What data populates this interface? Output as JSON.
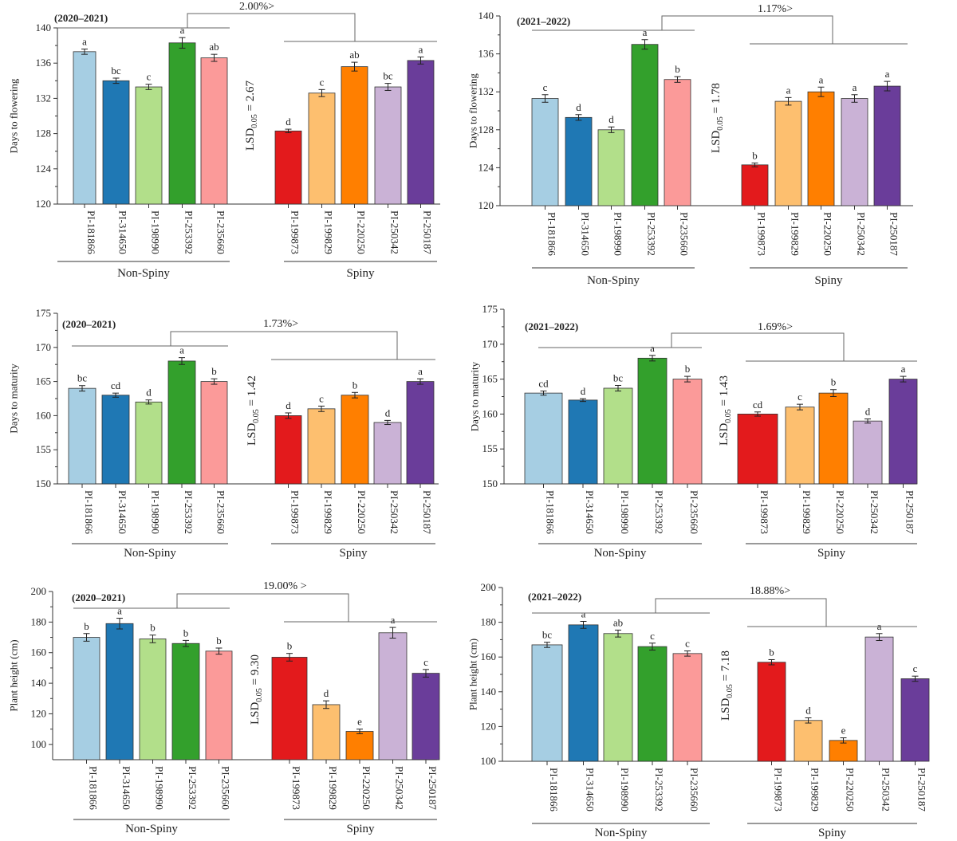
{
  "chart_data": [
    {
      "type": "bar",
      "period": "(2020–2021)",
      "ylabel": "Days to flowering",
      "ylim": [
        120,
        140
      ],
      "yticks": [
        120,
        124,
        128,
        132,
        136,
        140
      ],
      "categories": [
        "PI-181866",
        "PI-314650",
        "PI-198990",
        "PI-253392",
        "PI-235660",
        "PI-199873",
        "PI-199829",
        "PI-220250",
        "PI-250342",
        "PI-250187"
      ],
      "values": [
        137.3,
        134.0,
        133.3,
        138.3,
        136.6,
        128.3,
        132.6,
        135.6,
        133.3,
        136.3
      ],
      "errors": [
        0.3,
        0.3,
        0.3,
        0.6,
        0.4,
        0.2,
        0.4,
        0.5,
        0.4,
        0.4
      ],
      "letters": [
        "a",
        "bc",
        "c",
        "a",
        "ab",
        "d",
        "c",
        "ab",
        "bc",
        "a"
      ],
      "groups": [
        "Non-Spiny",
        "Spiny"
      ],
      "lsd": "LSD0.05 = 2.67",
      "lsd_main": "LSD",
      "lsd_sub": "0.05",
      "lsd_val": " = 2.67",
      "difference": "2.00%>"
    },
    {
      "type": "bar",
      "period": "(2021–2022)",
      "ylabel": "Days to flowering",
      "ylim": [
        120,
        140
      ],
      "yticks": [
        120,
        124,
        128,
        132,
        136,
        140
      ],
      "categories": [
        "PI-181866",
        "PI-314650",
        "PI-198990",
        "PI-253392",
        "PI-235660",
        "PI-199873",
        "PI-199829",
        "PI-220250",
        "PI-250342",
        "PI-250187"
      ],
      "values": [
        131.3,
        129.3,
        128.0,
        137.0,
        133.3,
        124.3,
        131.0,
        132.0,
        131.3,
        132.6
      ],
      "errors": [
        0.4,
        0.3,
        0.3,
        0.5,
        0.3,
        0.2,
        0.4,
        0.5,
        0.4,
        0.5
      ],
      "letters": [
        "c",
        "d",
        "d",
        "a",
        "b",
        "b",
        "a",
        "a",
        "a",
        "a"
      ],
      "groups": [
        "Non-Spiny",
        "Spiny"
      ],
      "lsd": "LSD0.05 = 1.78",
      "lsd_main": "LSD",
      "lsd_sub": "0.05",
      "lsd_val": " = 1.78",
      "difference": "1.17%>"
    },
    {
      "type": "bar",
      "period": "(2020–2021)",
      "ylabel": "Days to maturity",
      "ylim": [
        150,
        175
      ],
      "yticks": [
        150,
        155,
        160,
        165,
        170,
        175
      ],
      "categories": [
        "PI-181866",
        "PI-314650",
        "PI-198990",
        "PI-253392",
        "PI-235660",
        "PI-199873",
        "PI-199829",
        "PI-220250",
        "PI-250342",
        "PI-250187"
      ],
      "values": [
        164.0,
        163.0,
        162.0,
        168.0,
        165.0,
        160.0,
        161.0,
        163.0,
        159.0,
        165.0
      ],
      "errors": [
        0.4,
        0.3,
        0.3,
        0.5,
        0.4,
        0.4,
        0.4,
        0.4,
        0.3,
        0.4
      ],
      "letters": [
        "bc",
        "cd",
        "d",
        "a",
        "b",
        "d",
        "c",
        "b",
        "d",
        "a"
      ],
      "groups": [
        "Non-Spiny",
        "Spiny"
      ],
      "lsd": "LSD0.05 = 1.42",
      "lsd_main": "LSD",
      "lsd_sub": "0.05",
      "lsd_val": " = 1.42",
      "difference": "1.73%>"
    },
    {
      "type": "bar",
      "period": "(2021–2022)",
      "ylabel": "Days to maturity",
      "ylim": [
        150,
        175
      ],
      "yticks": [
        150,
        155,
        160,
        165,
        170,
        175
      ],
      "categories": [
        "PI-181866",
        "PI-314650",
        "PI-198990",
        "PI-253392",
        "PI-235660",
        "PI-199873",
        "PI-199829",
        "PI-220250",
        "PI-250342",
        "PI-250187"
      ],
      "values": [
        163.0,
        162.0,
        163.7,
        168.0,
        165.0,
        160.0,
        161.0,
        163.0,
        159.0,
        165.0
      ],
      "errors": [
        0.3,
        0.2,
        0.4,
        0.4,
        0.4,
        0.3,
        0.4,
        0.5,
        0.3,
        0.4
      ],
      "letters": [
        "cd",
        "d",
        "bc",
        "a",
        "b",
        "cd",
        "c",
        "b",
        "d",
        "a"
      ],
      "groups": [
        "Non-Spiny",
        "Spiny"
      ],
      "lsd": "LSD0.05 = 1.43",
      "lsd_main": "LSD",
      "lsd_sub": "0.05",
      "lsd_val": " = 1.43",
      "difference": "1.69%>"
    },
    {
      "type": "bar",
      "period": "(2020–2021)",
      "ylabel": "Plant height (cm)",
      "ylim": [
        90,
        200
      ],
      "yticks": [
        100,
        120,
        140,
        160,
        180,
        200
      ],
      "categories": [
        "PI-181866",
        "PI-314650",
        "PI-198990",
        "PI-253392",
        "PI-235660",
        "PI-199873",
        "PI-199829",
        "PI-220250",
        "PI-250342",
        "PI-250187"
      ],
      "values": [
        170.0,
        179.0,
        169.0,
        166.0,
        161.0,
        157.0,
        126.0,
        108.5,
        173.0,
        146.5
      ],
      "errors": [
        2.5,
        3.5,
        2.5,
        2.0,
        2.0,
        2.5,
        2.5,
        1.5,
        3.5,
        2.5
      ],
      "letters": [
        "b",
        "a",
        "b",
        "b",
        "b",
        "b",
        "d",
        "e",
        "a",
        "c"
      ],
      "groups": [
        "Non-Spiny",
        "Spiny"
      ],
      "lsd": "LSD0.05 = 9.30",
      "lsd_main": "LSD",
      "lsd_sub": "0.05",
      "lsd_val": " = 9.30",
      "difference": "19.00% >"
    },
    {
      "type": "bar",
      "period": "(2021–2022)",
      "ylabel": "Plant height (cm)",
      "ylim": [
        100,
        200
      ],
      "yticks": [
        100,
        120,
        140,
        160,
        180,
        200
      ],
      "categories": [
        "PI-181866",
        "PI-314650",
        "PI-198990",
        "PI-253392",
        "PI-235660",
        "PI-199873",
        "PI-199829",
        "PI-220250",
        "PI-250342",
        "PI-250187"
      ],
      "values": [
        167.0,
        178.5,
        173.5,
        166.0,
        162.0,
        157.0,
        123.5,
        112.0,
        171.5,
        147.5
      ],
      "errors": [
        1.5,
        2.0,
        2.0,
        2.0,
        1.5,
        1.5,
        1.5,
        1.5,
        2.0,
        1.5
      ],
      "letters": [
        "bc",
        "a",
        "ab",
        "c",
        "c",
        "b",
        "d",
        "e",
        "a",
        "c"
      ],
      "groups": [
        "Non-Spiny",
        "Spiny"
      ],
      "lsd": "LSD0.05 = 7.18",
      "lsd_main": "LSD",
      "lsd_sub": "0.05",
      "lsd_val": " = 7.18",
      "difference": "18.88%>"
    }
  ],
  "colors": [
    "#a6cee3",
    "#1f78b4",
    "#b2df8a",
    "#33a02c",
    "#fb9a99",
    "#e31a1c",
    "#fdbf6f",
    "#ff7f00",
    "#cab2d6",
    "#6a3d9a"
  ]
}
